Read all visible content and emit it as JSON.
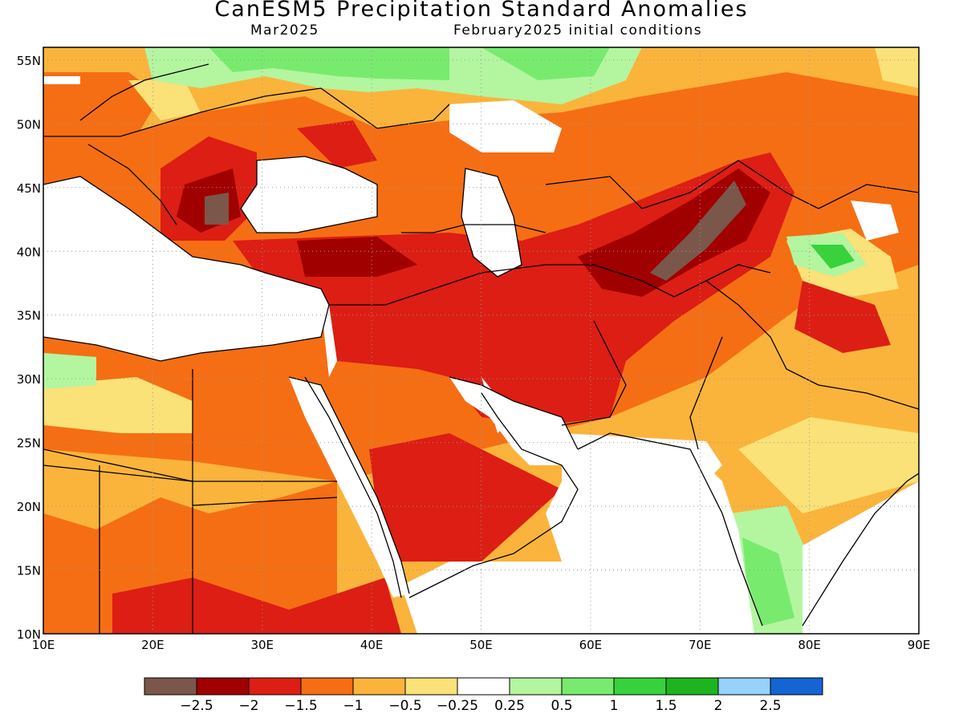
{
  "title": "CanESM5 Precipitation Standard Anomalies",
  "subtitle_left": "Mar2025",
  "subtitle_right": "February2025 initial conditions",
  "map": {
    "lon_range": [
      10,
      90
    ],
    "lat_range": [
      10,
      56
    ],
    "lon_ticks": [
      "10E",
      "20E",
      "30E",
      "40E",
      "50E",
      "60E",
      "70E",
      "80E",
      "90E"
    ],
    "lat_ticks": [
      "10N",
      "15N",
      "20N",
      "25N",
      "30N",
      "35N",
      "40N",
      "45N",
      "50N",
      "55N"
    ],
    "grid": "dotted",
    "ocean_color": "#ffffff",
    "boundaries_color": "#000000"
  },
  "colorbar": {
    "colors": [
      "#7a574a",
      "#a00000",
      "#dc1e14",
      "#f56e14",
      "#fab43c",
      "#fae178",
      "#ffffff",
      "#b4f5a0",
      "#78eb6e",
      "#37d23c",
      "#1eb41e",
      "#96d2fa",
      "#1464d2"
    ],
    "labels": [
      "-2.5",
      "-2",
      "-1.5",
      "-1",
      "-0.5",
      "-0.25",
      "0.25",
      "0.5",
      "1",
      "1.5",
      "2",
      "2.5"
    ]
  }
}
